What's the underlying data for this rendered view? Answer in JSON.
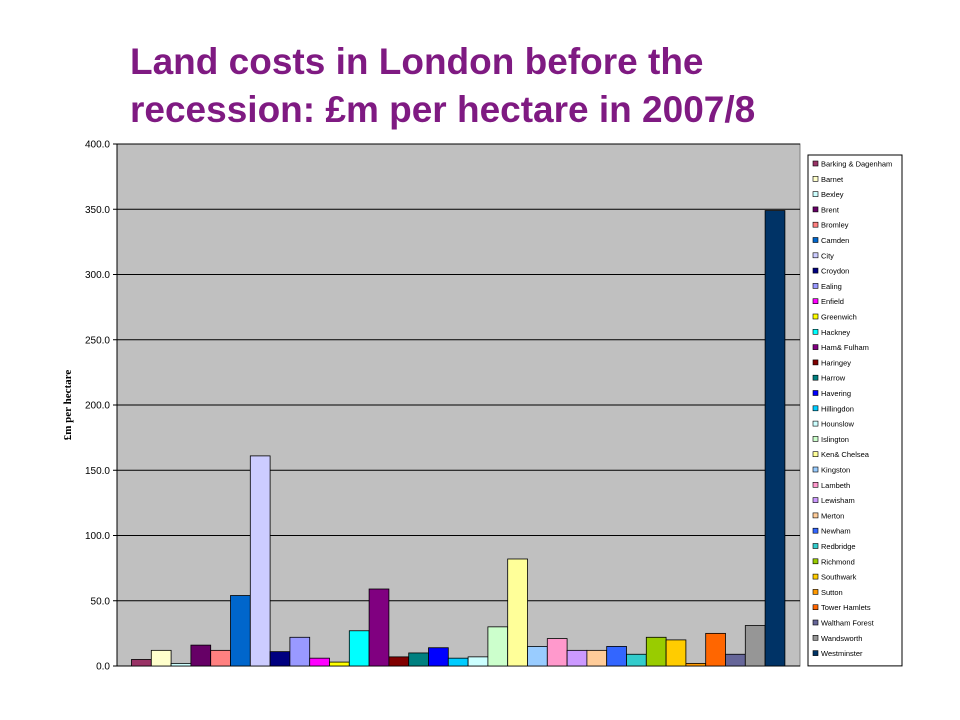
{
  "chart_data": {
    "type": "bar",
    "title_lines": [
      "Land costs in London before the",
      "recession:  £m per hectare in  2007/8"
    ],
    "ylabel": "£m per hectare",
    "xlabel": "",
    "ylim": [
      0,
      400
    ],
    "yticks": [
      "0.0",
      "50.0",
      "100.0",
      "150.0",
      "200.0",
      "250.0",
      "300.0",
      "350.0",
      "400.0"
    ],
    "grid": true,
    "legend_position": "right",
    "plot_background": "#C0C0C0",
    "series": [
      {
        "name": "Barking & Dagenham",
        "value": 5,
        "color": "#993366"
      },
      {
        "name": "Barnet",
        "value": 12,
        "color": "#FFFFCC"
      },
      {
        "name": "Bexley",
        "value": 2,
        "color": "#CCFFFF"
      },
      {
        "name": "Brent",
        "value": 16,
        "color": "#660066"
      },
      {
        "name": "Bromley",
        "value": 12,
        "color": "#FF8080"
      },
      {
        "name": "Camden",
        "value": 54,
        "color": "#0066CC"
      },
      {
        "name": "City",
        "value": 161,
        "color": "#CCCCFF"
      },
      {
        "name": "Croydon",
        "value": 11,
        "color": "#000080"
      },
      {
        "name": "Ealing",
        "value": 22,
        "color": "#9999FF"
      },
      {
        "name": "Enfield",
        "value": 6,
        "color": "#FF00FF"
      },
      {
        "name": "Greenwich",
        "value": 3,
        "color": "#FFFF00"
      },
      {
        "name": "Hackney",
        "value": 27,
        "color": "#00FFFF"
      },
      {
        "name": "Ham& Fulham",
        "value": 59,
        "color": "#800080"
      },
      {
        "name": "Haringey",
        "value": 7,
        "color": "#800000"
      },
      {
        "name": "Harrow",
        "value": 10,
        "color": "#008080"
      },
      {
        "name": "Havering",
        "value": 14,
        "color": "#0000FF"
      },
      {
        "name": "Hillingdon",
        "value": 6,
        "color": "#00CCFF"
      },
      {
        "name": "Hounslow",
        "value": 7,
        "color": "#CCFFFF"
      },
      {
        "name": "Islington",
        "value": 30,
        "color": "#CCFFCC"
      },
      {
        "name": "Ken& Chelsea",
        "value": 82,
        "color": "#FFFF99"
      },
      {
        "name": "Kingston",
        "value": 15,
        "color": "#99CCFF"
      },
      {
        "name": "Lambeth",
        "value": 21,
        "color": "#FF99CC"
      },
      {
        "name": "Lewisham",
        "value": 12,
        "color": "#CC99FF"
      },
      {
        "name": "Merton",
        "value": 12,
        "color": "#FFCC99"
      },
      {
        "name": "Newham",
        "value": 15,
        "color": "#3366FF"
      },
      {
        "name": "Redbridge",
        "value": 9,
        "color": "#33CCCC"
      },
      {
        "name": "Richmond",
        "value": 22,
        "color": "#99CC00"
      },
      {
        "name": "Southwark",
        "value": 20,
        "color": "#FFCC00"
      },
      {
        "name": "Sutton",
        "value": 2,
        "color": "#FF9900"
      },
      {
        "name": "Tower Hamlets",
        "value": 25,
        "color": "#FF6600"
      },
      {
        "name": "Waltham Forest",
        "value": 9,
        "color": "#666699"
      },
      {
        "name": "Wandsworth",
        "value": 31,
        "color": "#969696"
      },
      {
        "name": "Westminster",
        "value": 349,
        "color": "#003366"
      }
    ]
  }
}
